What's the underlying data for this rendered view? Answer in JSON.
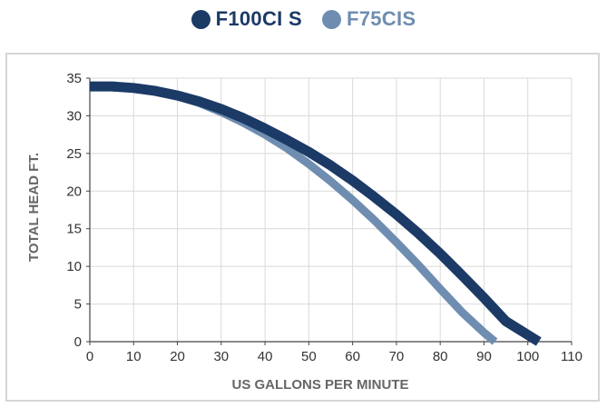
{
  "chart_data": {
    "type": "line",
    "xlabel": "US GALLONS PER MINUTE",
    "ylabel": "TOTAL HEAD FT.",
    "xlim": [
      0,
      110
    ],
    "ylim": [
      0,
      35
    ],
    "xticks": [
      0,
      10,
      20,
      30,
      40,
      50,
      60,
      70,
      80,
      90,
      100,
      110
    ],
    "yticks": [
      0,
      5,
      10,
      15,
      20,
      25,
      30,
      35
    ],
    "grid": true,
    "legend_position": "top-center",
    "series": [
      {
        "name": "F100CI S",
        "color": "#1b3a66",
        "x": [
          0,
          5,
          10,
          15,
          20,
          25,
          30,
          35,
          40,
          45,
          50,
          55,
          60,
          65,
          70,
          75,
          80,
          85,
          90,
          95,
          100,
          102.5
        ],
        "y": [
          33.9,
          33.9,
          33.7,
          33.3,
          32.7,
          31.9,
          30.9,
          29.7,
          28.3,
          26.8,
          25.2,
          23.4,
          21.4,
          19.2,
          16.9,
          14.4,
          11.7,
          8.8,
          5.8,
          2.7,
          0.9,
          0
        ]
      },
      {
        "name": "F75CIS",
        "color": "#6f8db0",
        "x": [
          0,
          5,
          10,
          15,
          20,
          25,
          30,
          35,
          40,
          45,
          50,
          55,
          60,
          65,
          70,
          75,
          80,
          85,
          90,
          92.5
        ],
        "y": [
          33.9,
          33.9,
          33.7,
          33.3,
          32.6,
          31.7,
          30.5,
          29.1,
          27.5,
          25.7,
          23.6,
          21.3,
          18.8,
          16.1,
          13.2,
          10.2,
          7.0,
          3.9,
          1.2,
          0
        ]
      }
    ]
  }
}
